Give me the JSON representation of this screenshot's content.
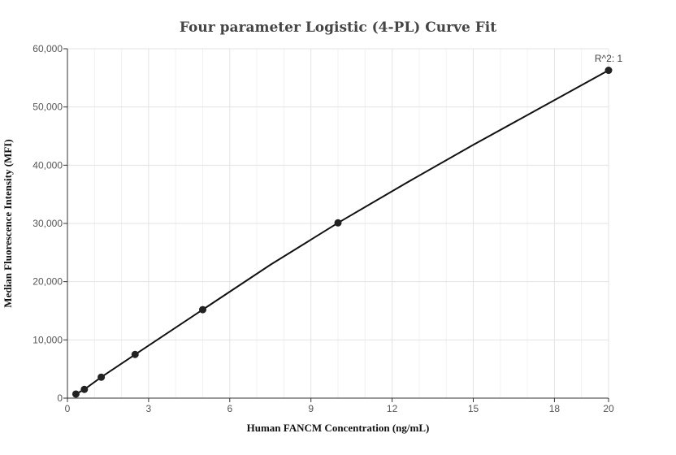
{
  "chart_data": {
    "type": "scatter",
    "title": "Four parameter Logistic (4-PL) Curve Fit",
    "xlabel": "Human FANCM Concentration (ng/mL)",
    "ylabel": "Median Fluorescence Intensity (MFI)",
    "xlim": [
      0,
      20
    ],
    "ylim": [
      0,
      60000
    ],
    "x_ticks": [
      0,
      3,
      6,
      9,
      12,
      15,
      18,
      20
    ],
    "x_tick_labels": [
      "0",
      "3",
      "6",
      "9",
      "12",
      "15",
      "18",
      "20"
    ],
    "y_ticks": [
      0,
      10000,
      20000,
      30000,
      40000,
      50000,
      60000
    ],
    "y_tick_labels": [
      "0",
      "10,000",
      "20,000",
      "30,000",
      "40,000",
      "50,000",
      "60,000"
    ],
    "grid": true,
    "series": [
      {
        "type": "scatter",
        "x": [
          0.3125,
          0.625,
          1.25,
          2.5,
          5,
          10,
          20
        ],
        "y": [
          700,
          1500,
          3600,
          7500,
          15200,
          30100,
          56300
        ]
      },
      {
        "type": "line",
        "x": [
          0.3125,
          0.625,
          1.25,
          2.5,
          5,
          7.5,
          10,
          12.5,
          15,
          17.5,
          20
        ],
        "y": [
          700,
          1500,
          3600,
          7500,
          15200,
          22900,
          30100,
          36900,
          43500,
          49900,
          56300
        ]
      }
    ],
    "annotation": "R^2: 1"
  }
}
